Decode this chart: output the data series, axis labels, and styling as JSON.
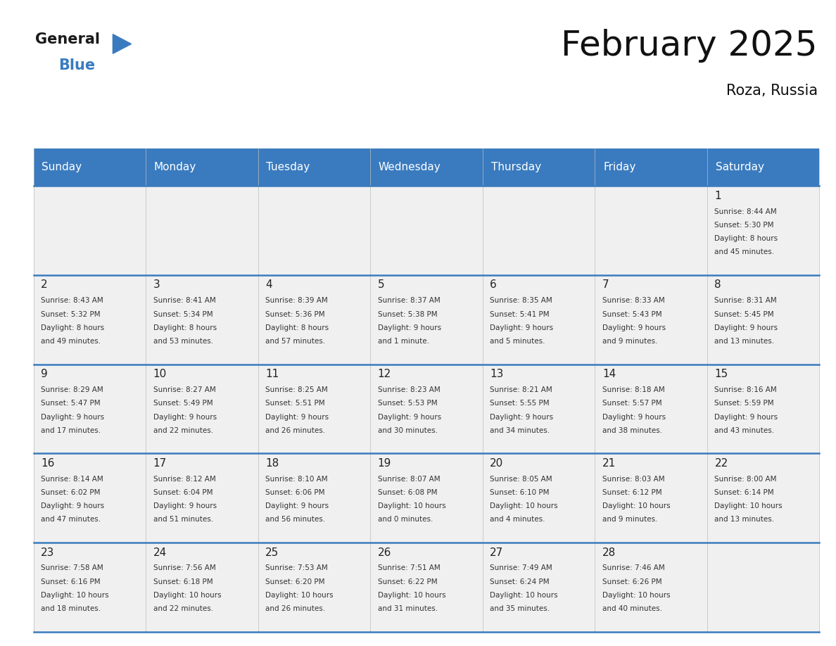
{
  "title": "February 2025",
  "subtitle": "Roza, Russia",
  "header_color": "#3a7bbf",
  "header_text_color": "#ffffff",
  "day_names": [
    "Sunday",
    "Monday",
    "Tuesday",
    "Wednesday",
    "Thursday",
    "Friday",
    "Saturday"
  ],
  "cell_bg": "#f0f0f0",
  "line_color": "#3a7bbf",
  "date_color": "#222222",
  "info_color": "#333333",
  "days": [
    {
      "date": 1,
      "col": 6,
      "row": 0,
      "sunrise": "8:44 AM",
      "sunset": "5:30 PM",
      "daylight_hrs": 8,
      "daylight_min": 45
    },
    {
      "date": 2,
      "col": 0,
      "row": 1,
      "sunrise": "8:43 AM",
      "sunset": "5:32 PM",
      "daylight_hrs": 8,
      "daylight_min": 49
    },
    {
      "date": 3,
      "col": 1,
      "row": 1,
      "sunrise": "8:41 AM",
      "sunset": "5:34 PM",
      "daylight_hrs": 8,
      "daylight_min": 53
    },
    {
      "date": 4,
      "col": 2,
      "row": 1,
      "sunrise": "8:39 AM",
      "sunset": "5:36 PM",
      "daylight_hrs": 8,
      "daylight_min": 57
    },
    {
      "date": 5,
      "col": 3,
      "row": 1,
      "sunrise": "8:37 AM",
      "sunset": "5:38 PM",
      "daylight_hrs": 9,
      "daylight_min": 1
    },
    {
      "date": 6,
      "col": 4,
      "row": 1,
      "sunrise": "8:35 AM",
      "sunset": "5:41 PM",
      "daylight_hrs": 9,
      "daylight_min": 5
    },
    {
      "date": 7,
      "col": 5,
      "row": 1,
      "sunrise": "8:33 AM",
      "sunset": "5:43 PM",
      "daylight_hrs": 9,
      "daylight_min": 9
    },
    {
      "date": 8,
      "col": 6,
      "row": 1,
      "sunrise": "8:31 AM",
      "sunset": "5:45 PM",
      "daylight_hrs": 9,
      "daylight_min": 13
    },
    {
      "date": 9,
      "col": 0,
      "row": 2,
      "sunrise": "8:29 AM",
      "sunset": "5:47 PM",
      "daylight_hrs": 9,
      "daylight_min": 17
    },
    {
      "date": 10,
      "col": 1,
      "row": 2,
      "sunrise": "8:27 AM",
      "sunset": "5:49 PM",
      "daylight_hrs": 9,
      "daylight_min": 22
    },
    {
      "date": 11,
      "col": 2,
      "row": 2,
      "sunrise": "8:25 AM",
      "sunset": "5:51 PM",
      "daylight_hrs": 9,
      "daylight_min": 26
    },
    {
      "date": 12,
      "col": 3,
      "row": 2,
      "sunrise": "8:23 AM",
      "sunset": "5:53 PM",
      "daylight_hrs": 9,
      "daylight_min": 30
    },
    {
      "date": 13,
      "col": 4,
      "row": 2,
      "sunrise": "8:21 AM",
      "sunset": "5:55 PM",
      "daylight_hrs": 9,
      "daylight_min": 34
    },
    {
      "date": 14,
      "col": 5,
      "row": 2,
      "sunrise": "8:18 AM",
      "sunset": "5:57 PM",
      "daylight_hrs": 9,
      "daylight_min": 38
    },
    {
      "date": 15,
      "col": 6,
      "row": 2,
      "sunrise": "8:16 AM",
      "sunset": "5:59 PM",
      "daylight_hrs": 9,
      "daylight_min": 43
    },
    {
      "date": 16,
      "col": 0,
      "row": 3,
      "sunrise": "8:14 AM",
      "sunset": "6:02 PM",
      "daylight_hrs": 9,
      "daylight_min": 47
    },
    {
      "date": 17,
      "col": 1,
      "row": 3,
      "sunrise": "8:12 AM",
      "sunset": "6:04 PM",
      "daylight_hrs": 9,
      "daylight_min": 51
    },
    {
      "date": 18,
      "col": 2,
      "row": 3,
      "sunrise": "8:10 AM",
      "sunset": "6:06 PM",
      "daylight_hrs": 9,
      "daylight_min": 56
    },
    {
      "date": 19,
      "col": 3,
      "row": 3,
      "sunrise": "8:07 AM",
      "sunset": "6:08 PM",
      "daylight_hrs": 10,
      "daylight_min": 0
    },
    {
      "date": 20,
      "col": 4,
      "row": 3,
      "sunrise": "8:05 AM",
      "sunset": "6:10 PM",
      "daylight_hrs": 10,
      "daylight_min": 4
    },
    {
      "date": 21,
      "col": 5,
      "row": 3,
      "sunrise": "8:03 AM",
      "sunset": "6:12 PM",
      "daylight_hrs": 10,
      "daylight_min": 9
    },
    {
      "date": 22,
      "col": 6,
      "row": 3,
      "sunrise": "8:00 AM",
      "sunset": "6:14 PM",
      "daylight_hrs": 10,
      "daylight_min": 13
    },
    {
      "date": 23,
      "col": 0,
      "row": 4,
      "sunrise": "7:58 AM",
      "sunset": "6:16 PM",
      "daylight_hrs": 10,
      "daylight_min": 18
    },
    {
      "date": 24,
      "col": 1,
      "row": 4,
      "sunrise": "7:56 AM",
      "sunset": "6:18 PM",
      "daylight_hrs": 10,
      "daylight_min": 22
    },
    {
      "date": 25,
      "col": 2,
      "row": 4,
      "sunrise": "7:53 AM",
      "sunset": "6:20 PM",
      "daylight_hrs": 10,
      "daylight_min": 26
    },
    {
      "date": 26,
      "col": 3,
      "row": 4,
      "sunrise": "7:51 AM",
      "sunset": "6:22 PM",
      "daylight_hrs": 10,
      "daylight_min": 31
    },
    {
      "date": 27,
      "col": 4,
      "row": 4,
      "sunrise": "7:49 AM",
      "sunset": "6:24 PM",
      "daylight_hrs": 10,
      "daylight_min": 35
    },
    {
      "date": 28,
      "col": 5,
      "row": 4,
      "sunrise": "7:46 AM",
      "sunset": "6:26 PM",
      "daylight_hrs": 10,
      "daylight_min": 40
    }
  ],
  "num_rows": 5,
  "num_cols": 7
}
